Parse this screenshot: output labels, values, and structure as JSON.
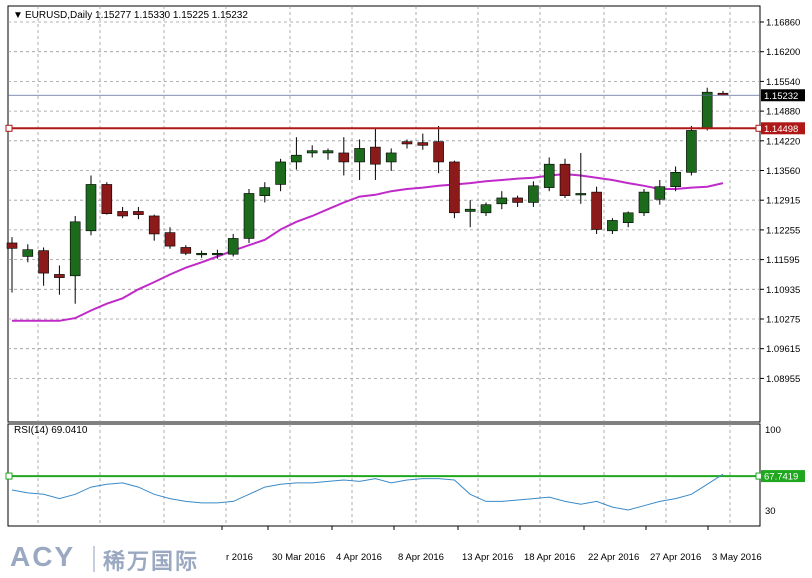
{
  "header": {
    "arrow": "▼",
    "title": "EURUSD,Daily  1.15277 1.15330 1.15225 1.15232"
  },
  "rsi": {
    "label": "RSI(14) 69.0410",
    "scale_top": "100",
    "scale_bottom": "30",
    "level_label": "67.7419",
    "level_color": "#1fa81f",
    "line_color": "#3a8ac8"
  },
  "colors": {
    "bull": "#1c6b1c",
    "bear": "#8b1a1a",
    "ma": "#c02ac8",
    "hline": "#b01818",
    "grid": "#9a9a9a"
  },
  "logo": {
    "brand": "ACY",
    "chinese": "稀万国际"
  },
  "chart_data": {
    "type": "candlestick",
    "instrument": "EURUSD",
    "timeframe": "Daily",
    "ohlc_header": [
      1.15277,
      1.1533,
      1.15225,
      1.15232
    ],
    "y_ticks": [
      "1.16860",
      "1.16200",
      "1.15540",
      "1.14880",
      "1.14220",
      "1.13560",
      "1.12915",
      "1.12255",
      "1.11595",
      "1.10935",
      "1.10275",
      "1.09615",
      "1.08955"
    ],
    "x_ticks": [
      "r 2016",
      "30 Mar 2016",
      "4 Apr 2016",
      "8 Apr 2016",
      "13 Apr 2016",
      "18 Apr 2016",
      "22 Apr 2016",
      "27 Apr 2016",
      "3 May 2016"
    ],
    "current_price": "1.15232",
    "horizontal_line": "1.14498",
    "candles": [
      {
        "o": 1.1195,
        "h": 1.1208,
        "l": 1.1085,
        "c": 1.1183
      },
      {
        "o": 1.1165,
        "h": 1.1192,
        "l": 1.1152,
        "c": 1.118
      },
      {
        "o": 1.1178,
        "h": 1.1185,
        "l": 1.11,
        "c": 1.1128
      },
      {
        "o": 1.1125,
        "h": 1.1145,
        "l": 1.108,
        "c": 1.1118
      },
      {
        "o": 1.1122,
        "h": 1.1255,
        "l": 1.106,
        "c": 1.1242
      },
      {
        "o": 1.1222,
        "h": 1.1345,
        "l": 1.1212,
        "c": 1.1325
      },
      {
        "o": 1.1325,
        "h": 1.133,
        "l": 1.1258,
        "c": 1.126
      },
      {
        "o": 1.1265,
        "h": 1.1275,
        "l": 1.125,
        "c": 1.1255
      },
      {
        "o": 1.1265,
        "h": 1.1275,
        "l": 1.1248,
        "c": 1.1258
      },
      {
        "o": 1.1255,
        "h": 1.1258,
        "l": 1.12,
        "c": 1.1215
      },
      {
        "o": 1.1218,
        "h": 1.123,
        "l": 1.1182,
        "c": 1.1188
      },
      {
        "o": 1.1185,
        "h": 1.119,
        "l": 1.1168,
        "c": 1.1172
      },
      {
        "o": 1.117,
        "h": 1.1178,
        "l": 1.1162,
        "c": 1.1172
      },
      {
        "o": 1.117,
        "h": 1.118,
        "l": 1.116,
        "c": 1.1172
      },
      {
        "o": 1.117,
        "h": 1.1215,
        "l": 1.1165,
        "c": 1.1205
      },
      {
        "o": 1.1205,
        "h": 1.1315,
        "l": 1.1195,
        "c": 1.1305
      },
      {
        "o": 1.13,
        "h": 1.133,
        "l": 1.1285,
        "c": 1.1318
      },
      {
        "o": 1.1325,
        "h": 1.1382,
        "l": 1.131,
        "c": 1.1375
      },
      {
        "o": 1.1375,
        "h": 1.143,
        "l": 1.1358,
        "c": 1.139
      },
      {
        "o": 1.1395,
        "h": 1.1412,
        "l": 1.1385,
        "c": 1.14
      },
      {
        "o": 1.1395,
        "h": 1.1405,
        "l": 1.138,
        "c": 1.14
      },
      {
        "o": 1.1395,
        "h": 1.143,
        "l": 1.1345,
        "c": 1.1375
      },
      {
        "o": 1.1375,
        "h": 1.1425,
        "l": 1.1335,
        "c": 1.1405
      },
      {
        "o": 1.1408,
        "h": 1.145,
        "l": 1.1335,
        "c": 1.137
      },
      {
        "o": 1.1375,
        "h": 1.1405,
        "l": 1.1355,
        "c": 1.1395
      },
      {
        "o": 1.142,
        "h": 1.1425,
        "l": 1.1405,
        "c": 1.1415
      },
      {
        "o": 1.1418,
        "h": 1.1438,
        "l": 1.1402,
        "c": 1.1412
      },
      {
        "o": 1.142,
        "h": 1.1455,
        "l": 1.135,
        "c": 1.1375
      },
      {
        "o": 1.1375,
        "h": 1.1378,
        "l": 1.125,
        "c": 1.1262
      },
      {
        "o": 1.1265,
        "h": 1.129,
        "l": 1.123,
        "c": 1.127
      },
      {
        "o": 1.1262,
        "h": 1.1285,
        "l": 1.1255,
        "c": 1.128
      },
      {
        "o": 1.1282,
        "h": 1.131,
        "l": 1.127,
        "c": 1.1295
      },
      {
        "o": 1.1295,
        "h": 1.13,
        "l": 1.1275,
        "c": 1.1285
      },
      {
        "o": 1.1285,
        "h": 1.1332,
        "l": 1.1275,
        "c": 1.1322
      },
      {
        "o": 1.1318,
        "h": 1.1385,
        "l": 1.131,
        "c": 1.137
      },
      {
        "o": 1.137,
        "h": 1.1382,
        "l": 1.1295,
        "c": 1.13
      },
      {
        "o": 1.1302,
        "h": 1.1395,
        "l": 1.1282,
        "c": 1.1305
      },
      {
        "o": 1.1308,
        "h": 1.132,
        "l": 1.1215,
        "c": 1.1225
      },
      {
        "o": 1.1222,
        "h": 1.125,
        "l": 1.1215,
        "c": 1.1245
      },
      {
        "o": 1.124,
        "h": 1.1265,
        "l": 1.123,
        "c": 1.1262
      },
      {
        "o": 1.1262,
        "h": 1.1315,
        "l": 1.1255,
        "c": 1.1308
      },
      {
        "o": 1.1292,
        "h": 1.1335,
        "l": 1.128,
        "c": 1.132
      },
      {
        "o": 1.132,
        "h": 1.1365,
        "l": 1.131,
        "c": 1.1352
      },
      {
        "o": 1.1352,
        "h": 1.1455,
        "l": 1.1345,
        "c": 1.1445
      },
      {
        "o": 1.145,
        "h": 1.154,
        "l": 1.1445,
        "c": 1.153
      },
      {
        "o": 1.15277,
        "h": 1.1533,
        "l": 1.15225,
        "c": 1.15232
      }
    ],
    "ma": [
      1.1022,
      1.1022,
      1.1022,
      1.1022,
      1.1028,
      1.1045,
      1.106,
      1.1072,
      1.1092,
      1.1108,
      1.1125,
      1.114,
      1.1152,
      1.1165,
      1.1178,
      1.119,
      1.1202,
      1.1225,
      1.1242,
      1.1255,
      1.127,
      1.1285,
      1.1298,
      1.1302,
      1.131,
      1.1315,
      1.1318,
      1.1322,
      1.1325,
      1.1328,
      1.1332,
      1.1335,
      1.1338,
      1.134,
      1.1345,
      1.1348,
      1.1345,
      1.134,
      1.1335,
      1.1328,
      1.1322,
      1.1315,
      1.1315,
      1.1318,
      1.132,
      1.1328
    ],
    "rsi_values": [
      58,
      56,
      55,
      52,
      55,
      60,
      62,
      63,
      60,
      55,
      52,
      50,
      49,
      49,
      50,
      55,
      60,
      62,
      63,
      63,
      64,
      65,
      64,
      66,
      63,
      65,
      66,
      66,
      65,
      55,
      50,
      50,
      51,
      52,
      53,
      50,
      48,
      50,
      46,
      44,
      47,
      50,
      52,
      55,
      62,
      69.04
    ]
  }
}
